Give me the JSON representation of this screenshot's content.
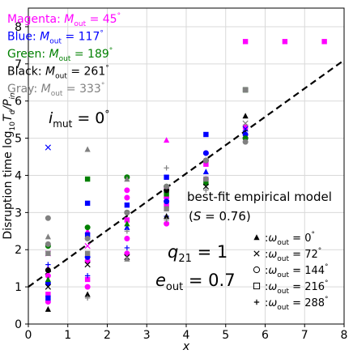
{
  "chart_data": {
    "type": "scatter",
    "xlabel": "x",
    "ylabel_parts": [
      "Disruption time log",
      "10",
      "T",
      "d",
      "/P",
      "in"
    ],
    "xlim": [
      0,
      8
    ],
    "ylim": [
      0,
      8.5
    ],
    "xticks": [
      "0",
      "1",
      "2",
      "3",
      "4",
      "5",
      "6",
      "7",
      "8"
    ],
    "yticks": [
      "0",
      "1",
      "2",
      "3",
      "4",
      "5",
      "6",
      "7",
      "8"
    ],
    "grid": true,
    "legend_location": "top-left",
    "color_legend": [
      {
        "name": "Magenta",
        "sym": "M",
        "sub": "out",
        "val": "= 45",
        "deg": "°",
        "color": "#ff00ff"
      },
      {
        "name": "Blue",
        "sym": "M",
        "sub": "out",
        "val": "= 117",
        "deg": "°",
        "color": "#0000ff"
      },
      {
        "name": "Green",
        "sym": "M",
        "sub": "out",
        "val": "= 189",
        "deg": "°",
        "color": "#008000"
      },
      {
        "name": "Black",
        "sym": "M",
        "sub": "out",
        "val": "= 261",
        "deg": "°",
        "color": "#000000"
      },
      {
        "name": "Gray",
        "sym": "M",
        "sub": "out",
        "val": "= 333",
        "deg": "°",
        "color": "#808080"
      }
    ],
    "marker_legend": [
      {
        "marker": "triangle",
        "sym": "ω",
        "sub": "out",
        "val": " = 0",
        "deg": "°"
      },
      {
        "marker": "x",
        "sym": "ω",
        "sub": "out",
        "val": " = 72",
        "deg": "°"
      },
      {
        "marker": "circle",
        "sym": "ω",
        "sub": "out",
        "val": " = 144",
        "deg": "°"
      },
      {
        "marker": "square",
        "sym": "ω",
        "sub": "out",
        "val": " = 216",
        "deg": "°"
      },
      {
        "marker": "plus",
        "sym": "ω",
        "sub": "out",
        "val": " = 288",
        "deg": "°"
      }
    ],
    "annotations": {
      "imut": {
        "sym": "i",
        "sub": "mut",
        "val": " = 0",
        "deg": "°"
      },
      "model_line1": "best-fit empirical model",
      "model_line2": [
        "(",
        "S",
        " = 0.76)"
      ],
      "q21": {
        "sym": "q",
        "sub": "21",
        "val": " = 1"
      },
      "eout": {
        "sym": "e",
        "sub": "out",
        "val": " = 0.7"
      }
    },
    "fit_line": {
      "x": [
        0,
        8
      ],
      "y": [
        1.0,
        7.1
      ],
      "style": "dashed",
      "color": "#000000"
    },
    "series": [
      {
        "name": "Magenta",
        "color": "#ff00ff",
        "points": [
          [
            0.5,
            0.6,
            "circle"
          ],
          [
            0.5,
            0.8,
            "square"
          ],
          [
            0.5,
            1.3,
            "circle"
          ],
          [
            0.5,
            1.5,
            "triangle"
          ],
          [
            0.5,
            1.9,
            "x"
          ],
          [
            1.5,
            1.0,
            "circle"
          ],
          [
            1.5,
            1.2,
            "square"
          ],
          [
            1.5,
            1.7,
            "circle"
          ],
          [
            1.5,
            2.1,
            "x"
          ],
          [
            1.5,
            2.5,
            "triangle"
          ],
          [
            2.5,
            1.9,
            "circle"
          ],
          [
            2.5,
            2.3,
            "circle"
          ],
          [
            2.5,
            2.8,
            "square"
          ],
          [
            2.5,
            3.4,
            "circle"
          ],
          [
            2.5,
            3.6,
            "circle"
          ],
          [
            3.5,
            2.7,
            "circle"
          ],
          [
            3.5,
            3.2,
            "square"
          ],
          [
            3.5,
            3.4,
            "circle"
          ],
          [
            3.5,
            3.6,
            "x"
          ],
          [
            3.5,
            4.95,
            "triangle"
          ],
          [
            4.5,
            3.9,
            "circle"
          ],
          [
            4.5,
            4.3,
            "square"
          ],
          [
            4.5,
            4.6,
            "circle"
          ],
          [
            5.5,
            5.0,
            "circle"
          ],
          [
            5.5,
            5.3,
            "square"
          ],
          [
            5.5,
            7.6,
            "square"
          ],
          [
            6.5,
            7.6,
            "square"
          ],
          [
            7.5,
            7.6,
            "square"
          ]
        ]
      },
      {
        "name": "Blue",
        "color": "#0000ff",
        "points": [
          [
            0.5,
            0.7,
            "square"
          ],
          [
            0.5,
            1.1,
            "circle"
          ],
          [
            0.5,
            1.6,
            "plus"
          ],
          [
            0.5,
            4.75,
            "x"
          ],
          [
            1.5,
            1.3,
            "plus"
          ],
          [
            1.5,
            1.8,
            "circle"
          ],
          [
            1.5,
            2.4,
            "square"
          ],
          [
            1.5,
            3.25,
            "square"
          ],
          [
            2.5,
            2.05,
            "plus"
          ],
          [
            2.5,
            2.6,
            "triangle"
          ],
          [
            2.5,
            3.2,
            "square"
          ],
          [
            3.5,
            2.9,
            "plus"
          ],
          [
            3.5,
            3.3,
            "circle"
          ],
          [
            3.5,
            3.95,
            "square"
          ],
          [
            4.5,
            4.1,
            "triangle"
          ],
          [
            4.5,
            4.6,
            "circle"
          ],
          [
            4.5,
            5.1,
            "square"
          ],
          [
            5.5,
            5.1,
            "circle"
          ],
          [
            5.5,
            5.25,
            "x"
          ]
        ]
      },
      {
        "name": "Green",
        "color": "#008000",
        "points": [
          [
            0.5,
            1.2,
            "triangle"
          ],
          [
            0.5,
            2.1,
            "circle"
          ],
          [
            1.5,
            2.6,
            "circle"
          ],
          [
            1.5,
            3.9,
            "square"
          ],
          [
            2.5,
            2.7,
            "triangle"
          ],
          [
            2.5,
            3.95,
            "circle"
          ],
          [
            3.5,
            3.5,
            "square"
          ],
          [
            3.5,
            3.7,
            "circle"
          ],
          [
            4.5,
            3.8,
            "square"
          ],
          [
            5.5,
            5.0,
            "circle"
          ],
          [
            5.5,
            6.3,
            "square"
          ]
        ]
      },
      {
        "name": "Black",
        "color": "#000000",
        "points": [
          [
            0.5,
            0.4,
            "triangle"
          ],
          [
            0.5,
            1.0,
            "x"
          ],
          [
            0.5,
            1.45,
            "circle"
          ],
          [
            1.5,
            0.8,
            "triangle"
          ],
          [
            1.5,
            1.6,
            "x"
          ],
          [
            2.5,
            1.8,
            "x"
          ],
          [
            2.5,
            3.0,
            "circle"
          ],
          [
            3.5,
            2.9,
            "triangle"
          ],
          [
            3.5,
            3.6,
            "circle"
          ],
          [
            4.5,
            3.7,
            "x"
          ],
          [
            4.5,
            4.4,
            "circle"
          ],
          [
            5.5,
            5.6,
            "triangle"
          ],
          [
            5.5,
            6.3,
            "square"
          ]
        ]
      },
      {
        "name": "Gray",
        "color": "#808080",
        "points": [
          [
            0.5,
            1.9,
            "square"
          ],
          [
            0.5,
            2.15,
            "circle"
          ],
          [
            0.5,
            2.35,
            "triangle"
          ],
          [
            0.5,
            2.85,
            "circle"
          ],
          [
            1.5,
            0.7,
            "plus"
          ],
          [
            1.5,
            1.9,
            "square"
          ],
          [
            1.5,
            2.3,
            "circle"
          ],
          [
            1.5,
            4.7,
            "triangle"
          ],
          [
            2.5,
            1.75,
            "triangle"
          ],
          [
            2.5,
            2.5,
            "plus"
          ],
          [
            2.5,
            3.0,
            "circle"
          ],
          [
            2.5,
            3.9,
            "triangle"
          ],
          [
            3.5,
            2.8,
            "plus"
          ],
          [
            3.5,
            3.1,
            "square"
          ],
          [
            3.5,
            3.7,
            "circle"
          ],
          [
            3.5,
            4.2,
            "plus"
          ],
          [
            4.5,
            3.6,
            "plus"
          ],
          [
            4.5,
            3.9,
            "square"
          ],
          [
            4.5,
            4.4,
            "circle"
          ],
          [
            5.5,
            4.9,
            "circle"
          ],
          [
            5.5,
            5.4,
            "x"
          ],
          [
            5.5,
            6.3,
            "square"
          ]
        ]
      }
    ]
  }
}
